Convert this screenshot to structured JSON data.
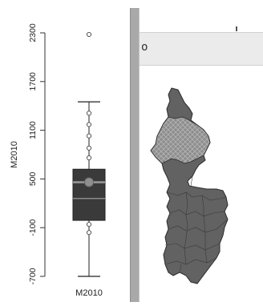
{
  "chart_data": {
    "type": "boxplot",
    "title": "",
    "xlabel": "",
    "ylabel": "M2010",
    "categories": [
      "M2010"
    ],
    "ylim": [
      -750,
      2400
    ],
    "yticks": [
      2300,
      1700,
      1100,
      500,
      -100,
      -700
    ],
    "box": {
      "whisker_low": -700,
      "q1": -10,
      "median": 260,
      "mean": 460,
      "q3": 620,
      "whisker_high": 1450
    },
    "outliers": [
      2280,
      1310,
      1170,
      1030,
      880,
      760,
      -60,
      -160
    ],
    "colors": {
      "box": "#3a3a3a",
      "median": "#8a8a8a",
      "mean": "#8f8f8f"
    }
  },
  "map": {
    "header_label": "o",
    "colors": {
      "region": "#626262",
      "highlight": "#8d8d8d",
      "outline": "#2a2a2a"
    }
  }
}
